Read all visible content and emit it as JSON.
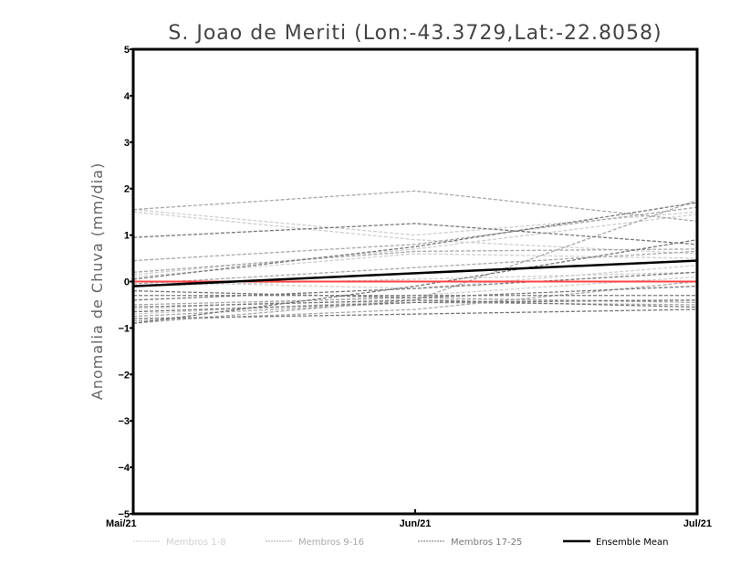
{
  "chart_data": {
    "type": "line",
    "title": "S. Joao de Meriti (Lon:-43.3729,Lat:-22.8058)",
    "xlabel": "",
    "ylabel": "Anomalia de Chuva (mm/dia)",
    "categories": [
      "Mai/21",
      "Jun/21",
      "Jul/21"
    ],
    "ylim": [
      -5,
      5
    ],
    "yticks": [
      "5",
      "4",
      "3",
      "2",
      "1",
      "0",
      "-1",
      "-2",
      "-3",
      "-4",
      "-5"
    ],
    "grid": false,
    "legend_position": "bottom",
    "zero_line_color": "#ff4444",
    "groups": [
      {
        "name": "Membros 1-8",
        "color": "#cfcfcf",
        "series": [
          [
            1.55,
            1.0,
            1.5
          ],
          [
            1.5,
            0.9,
            0.6
          ],
          [
            0.15,
            0.7,
            1.45
          ],
          [
            0.1,
            0.6,
            0.5
          ],
          [
            -0.1,
            0.05,
            0.2
          ],
          [
            -0.6,
            -0.3,
            0.1
          ],
          [
            -0.7,
            -0.4,
            -0.4
          ],
          [
            0.0,
            -0.15,
            0.35
          ]
        ]
      },
      {
        "name": "Membros 9-16",
        "color": "#a8a8a8",
        "series": [
          [
            1.55,
            1.95,
            1.3
          ],
          [
            0.45,
            0.8,
            1.6
          ],
          [
            -0.9,
            -0.4,
            1.75
          ],
          [
            -0.05,
            0.3,
            0.65
          ],
          [
            -0.5,
            -0.35,
            -0.45
          ],
          [
            -0.75,
            -0.45,
            -0.5
          ],
          [
            -0.85,
            -0.6,
            0.0
          ],
          [
            0.2,
            0.65,
            0.7
          ]
        ]
      },
      {
        "name": "Membros 17-25",
        "color": "#777777",
        "series": [
          [
            0.95,
            1.25,
            0.8
          ],
          [
            0.05,
            0.75,
            1.7
          ],
          [
            -0.3,
            -0.3,
            -0.3
          ],
          [
            -0.9,
            -0.1,
            0.9
          ],
          [
            -0.8,
            -0.7,
            -0.6
          ],
          [
            -0.65,
            -0.45,
            -0.4
          ],
          [
            -0.4,
            -0.15,
            0.2
          ],
          [
            -0.2,
            -0.35,
            -0.1
          ],
          [
            -0.55,
            -0.4,
            -0.55
          ]
        ]
      }
    ],
    "ensemble_mean": {
      "name": "Ensemble Mean",
      "color": "#000000",
      "values": [
        -0.1,
        0.18,
        0.45
      ]
    }
  }
}
